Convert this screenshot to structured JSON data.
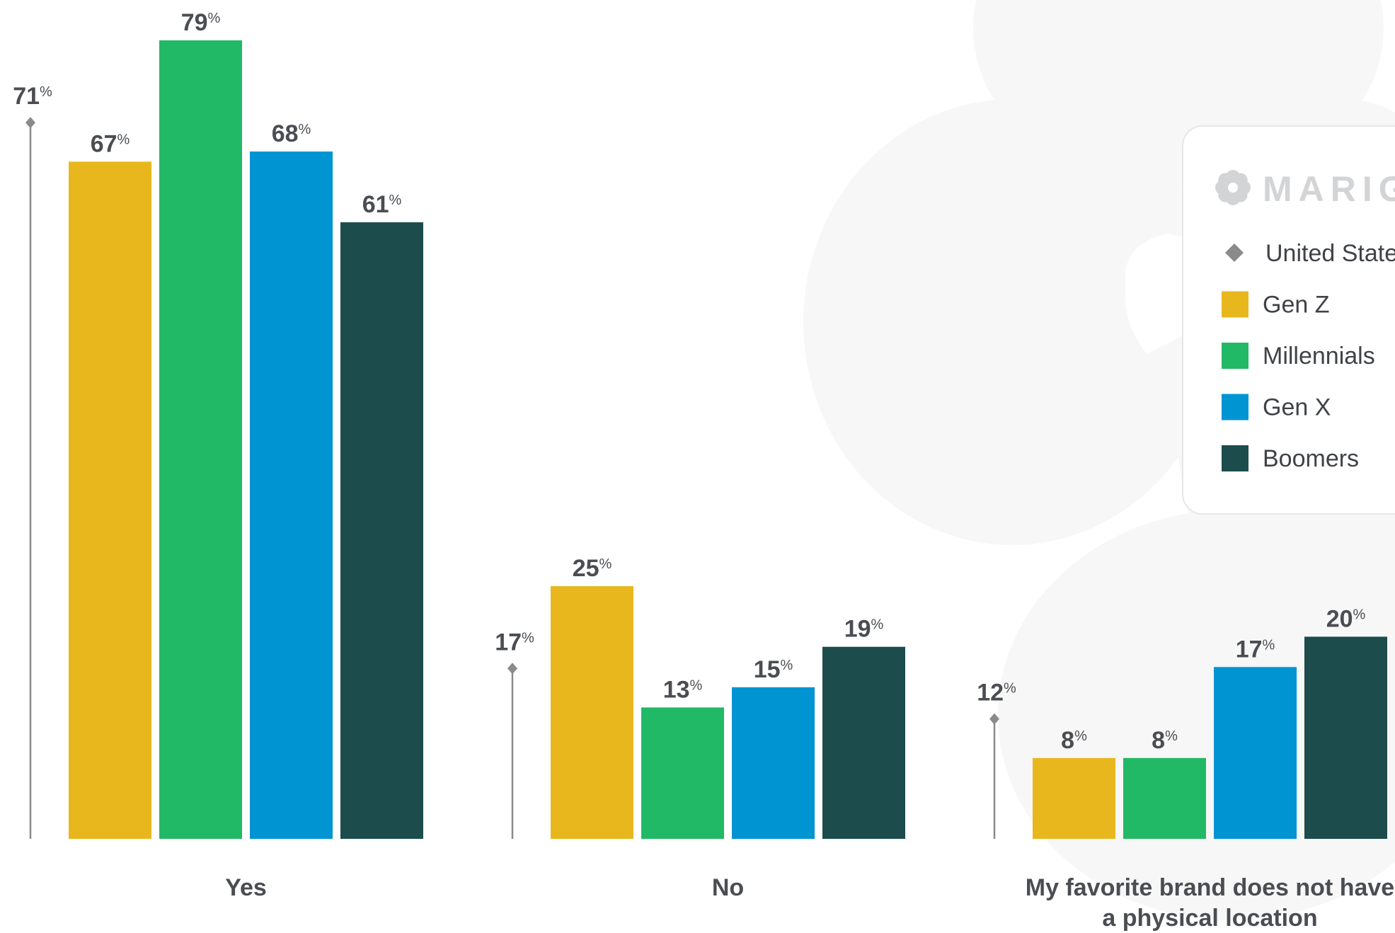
{
  "chart_data": {
    "type": "bar",
    "categories": [
      "Yes",
      "No",
      "My favorite brand does not have a physical location"
    ],
    "category_label_lines": [
      [
        "Yes"
      ],
      [
        "No"
      ],
      [
        "My favorite brand does not have",
        "a physical location"
      ]
    ],
    "series": [
      {
        "name": "Gen Z",
        "color": "#E8B71E",
        "values": [
          67,
          25,
          8
        ]
      },
      {
        "name": "Millennials",
        "color": "#22B966",
        "values": [
          79,
          13,
          8
        ]
      },
      {
        "name": "Gen X",
        "color": "#0194D3",
        "values": [
          68,
          15,
          17
        ]
      },
      {
        "name": "Boomers",
        "color": "#1C4C4C",
        "values": [
          61,
          19,
          20
        ]
      }
    ],
    "benchmark": {
      "name": "United States",
      "marker": "diamond",
      "color": "#8a8a8a",
      "values": [
        71,
        17,
        12
      ]
    },
    "value_suffix": "%",
    "ylim": [
      0,
      79
    ],
    "xlabel": "",
    "ylabel": "",
    "grid": false,
    "legend": {
      "placement": "right",
      "logo_text": "MARIGOLD",
      "logo_icon": "marigold-flower-icon",
      "items": [
        {
          "label": "United States",
          "marker": "diamond",
          "color": "#8a8a8a"
        },
        {
          "label": "Gen Z",
          "marker": "square",
          "color": "#E8B71E"
        },
        {
          "label": "Millennials",
          "marker": "square",
          "color": "#22B966"
        },
        {
          "label": "Gen X",
          "marker": "square",
          "color": "#0194D3"
        },
        {
          "label": "Boomers",
          "marker": "square",
          "color": "#1C4C4C"
        }
      ]
    },
    "background_watermark": "marigold-flower-watermark"
  }
}
